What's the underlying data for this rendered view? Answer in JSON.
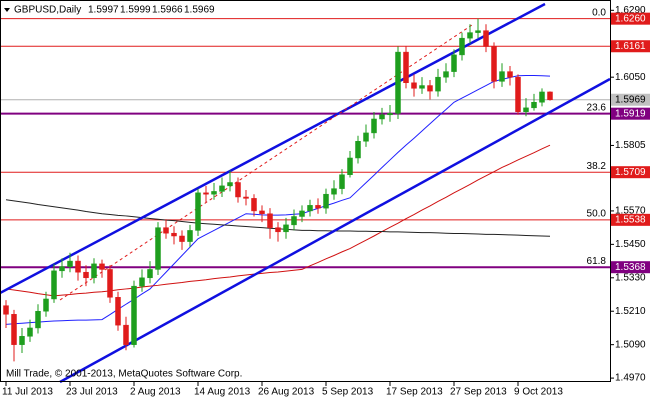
{
  "chart_data": {
    "type": "candlestick",
    "title": "GBPUSD,Daily",
    "footer": "Mill Trade, © 2001-2013, MetaQuotes Software Corp.",
    "categories": [
      "11 Jul 2013",
      null,
      null,
      null,
      null,
      null,
      null,
      null,
      "23 Jul 2013",
      null,
      null,
      null,
      null,
      null,
      null,
      null,
      "2 Aug 2013",
      null,
      null,
      null,
      null,
      null,
      null,
      null,
      "14 Aug 2013",
      null,
      null,
      null,
      null,
      null,
      null,
      null,
      "26 Aug 2013",
      null,
      null,
      null,
      null,
      null,
      null,
      null,
      "5 Sep 2013",
      null,
      null,
      null,
      null,
      null,
      null,
      null,
      "17 Sep 2013",
      null,
      null,
      null,
      null,
      null,
      null,
      null,
      "27 Sep 2013",
      null,
      null,
      null,
      null,
      null,
      null,
      null,
      "9 Oct 2013",
      null,
      null,
      null,
      null
    ],
    "open": [
      1.523,
      1.5199,
      1.509,
      1.512,
      1.515,
      1.521,
      1.5254,
      1.5355,
      1.537,
      1.539,
      1.535,
      1.533,
      1.538,
      1.536,
      1.526,
      1.516,
      1.509,
      1.53,
      1.533,
      1.536,
      1.551,
      1.549,
      1.548,
      1.546,
      1.55,
      1.5635,
      1.563,
      1.564,
      1.566,
      1.5672,
      1.562,
      1.5615,
      1.557,
      1.556,
      1.551,
      1.5495,
      1.552,
      1.555,
      1.557,
      1.559,
      1.558,
      1.563,
      1.565,
      1.57,
      1.576,
      1.582,
      1.585,
      1.59,
      1.5915,
      1.592,
      1.614,
      1.603,
      1.601,
      1.602,
      1.6,
      1.605,
      1.607,
      1.613,
      1.619,
      1.621,
      1.6217,
      1.616,
      1.6035,
      1.607,
      1.605,
      1.5926,
      1.594,
      1.596,
      1.5997
    ],
    "high": [
      1.525,
      1.5215,
      1.515,
      1.518,
      1.5235,
      1.528,
      1.538,
      1.54,
      1.542,
      1.541,
      1.5375,
      1.54,
      1.5395,
      1.5375,
      1.528,
      1.519,
      1.532,
      1.536,
      1.539,
      1.553,
      1.554,
      1.5515,
      1.55,
      1.552,
      1.565,
      1.566,
      1.567,
      1.569,
      1.5715,
      1.569,
      1.5645,
      1.563,
      1.559,
      1.558,
      1.553,
      1.5545,
      1.5575,
      1.559,
      1.561,
      1.5615,
      1.565,
      1.568,
      1.572,
      1.5785,
      1.584,
      1.588,
      1.5925,
      1.594,
      1.595,
      1.616,
      1.616,
      1.606,
      1.605,
      1.604,
      1.608,
      1.61,
      1.615,
      1.621,
      1.624,
      1.626,
      1.624,
      1.6175,
      1.61,
      1.609,
      1.606,
      1.5975,
      1.599,
      1.601,
      1.5999
    ],
    "low": [
      1.515,
      1.503,
      1.506,
      1.51,
      1.513,
      1.519,
      1.524,
      1.533,
      1.535,
      1.532,
      1.53,
      1.531,
      1.533,
      1.524,
      1.514,
      1.507,
      1.508,
      1.528,
      1.531,
      1.534,
      1.547,
      1.545,
      1.543,
      1.544,
      1.548,
      1.56,
      1.561,
      1.562,
      1.564,
      1.56,
      1.559,
      1.555,
      1.553,
      1.547,
      1.546,
      1.547,
      1.55,
      1.553,
      1.555,
      1.556,
      1.556,
      1.561,
      1.563,
      1.569,
      1.574,
      1.58,
      1.583,
      1.588,
      1.589,
      1.59,
      1.601,
      1.598,
      1.599,
      1.597,
      1.598,
      1.603,
      1.605,
      1.611,
      1.617,
      1.619,
      1.614,
      1.601,
      1.6015,
      1.602,
      1.5915,
      1.591,
      1.593,
      1.5945,
      1.5966
    ],
    "close": [
      1.5199,
      1.509,
      1.512,
      1.515,
      1.521,
      1.5254,
      1.5355,
      1.537,
      1.539,
      1.535,
      1.533,
      1.538,
      1.536,
      1.526,
      1.516,
      1.509,
      1.53,
      1.533,
      1.536,
      1.551,
      1.549,
      1.548,
      1.546,
      1.55,
      1.5635,
      1.563,
      1.564,
      1.566,
      1.5672,
      1.562,
      1.5615,
      1.557,
      1.556,
      1.551,
      1.5495,
      1.552,
      1.555,
      1.557,
      1.559,
      1.558,
      1.563,
      1.565,
      1.57,
      1.576,
      1.582,
      1.585,
      1.59,
      1.5915,
      1.592,
      1.614,
      1.603,
      1.601,
      1.602,
      1.6,
      1.605,
      1.607,
      1.613,
      1.619,
      1.621,
      1.6217,
      1.616,
      1.6035,
      1.607,
      1.605,
      1.5926,
      1.594,
      1.596,
      1.5997,
      1.5969
    ],
    "up_color": "#1e9e1e",
    "down_color": "#e01b1b",
    "lines": [
      {
        "color": "#2020ff",
        "values": [
          1.5163,
          1.5165,
          1.5167,
          1.5169,
          1.5171,
          1.5173,
          1.5175,
          1.5176,
          1.5177,
          1.5178,
          1.5178,
          1.5179,
          1.518,
          1.5198,
          1.5217,
          1.5235,
          1.5253,
          1.5272,
          1.529,
          1.532,
          1.535,
          1.538,
          1.541,
          1.544,
          1.547,
          1.5485,
          1.55,
          1.5515,
          1.553,
          1.5545,
          1.556,
          1.5558,
          1.5556,
          1.5555,
          1.5555,
          1.5556,
          1.5558,
          1.556,
          1.557,
          1.5579,
          1.5589,
          1.5598,
          1.5608,
          1.5617,
          1.5644,
          1.5671,
          1.5698,
          1.5726,
          1.5753,
          1.578,
          1.5806,
          1.5831,
          1.5857,
          1.5883,
          1.5909,
          1.5934,
          1.596,
          1.5975,
          1.599,
          1.6005,
          1.602,
          1.6035,
          1.6042,
          1.6049,
          1.6055,
          1.6056,
          1.6056,
          1.6055,
          1.6054
        ]
      },
      {
        "color": "#d01010",
        "values": [
          1.529,
          1.5286,
          1.5282,
          1.5278,
          1.5273,
          1.5269,
          1.5265,
          1.5268,
          1.527,
          1.5273,
          1.5275,
          1.5278,
          1.528,
          1.5283,
          1.5287,
          1.529,
          1.5293,
          1.5297,
          1.53,
          1.5303,
          1.5307,
          1.531,
          1.5313,
          1.5317,
          1.532,
          1.5323,
          1.5327,
          1.533,
          1.5333,
          1.5337,
          1.534,
          1.5343,
          1.5346,
          1.5349,
          1.5351,
          1.5354,
          1.5357,
          1.536,
          1.5373,
          1.5385,
          1.5398,
          1.541,
          1.5423,
          1.5435,
          1.545,
          1.5465,
          1.548,
          1.5496,
          1.5511,
          1.5526,
          1.5542,
          1.5557,
          1.5573,
          1.5588,
          1.5604,
          1.5619,
          1.5635,
          1.565,
          1.5665,
          1.5681,
          1.5696,
          1.5711,
          1.5726,
          1.5739,
          1.5753,
          1.5766,
          1.5779,
          1.5793,
          1.5806
        ]
      },
      {
        "color": "#222222",
        "values": [
          1.561,
          1.5606,
          1.5602,
          1.5598,
          1.5593,
          1.5589,
          1.5585,
          1.5581,
          1.5577,
          1.5573,
          1.5568,
          1.5564,
          1.556,
          1.5557,
          1.5554,
          1.5552,
          1.5549,
          1.5546,
          1.5543,
          1.554,
          1.5537,
          1.5535,
          1.5532,
          1.5529,
          1.5526,
          1.5524,
          1.5522,
          1.552,
          1.5518,
          1.5516,
          1.5514,
          1.5512,
          1.551,
          1.5508,
          1.5506,
          1.5504,
          1.5502,
          1.55,
          1.55,
          1.5499,
          1.5499,
          1.5498,
          1.5498,
          1.5498,
          1.5497,
          1.5497,
          1.5496,
          1.5496,
          1.5495,
          1.5495,
          1.5494,
          1.5493,
          1.5492,
          1.5492,
          1.5491,
          1.549,
          1.5489,
          1.5489,
          1.5488,
          1.5487,
          1.5486,
          1.5486,
          1.5485,
          1.5484,
          1.5483,
          1.5482,
          1.5481,
          1.548,
          1.5479
        ]
      }
    ],
    "levels": [
      {
        "value": 1.626,
        "label": "1.6260",
        "color": "#e01b1b",
        "fib": "0.0"
      },
      {
        "value": 1.6161,
        "label": "1.6161",
        "color": "#e01b1b"
      },
      {
        "value": 1.5919,
        "label": "1.5919",
        "color": "#800080",
        "fib": "23.6"
      },
      {
        "value": 1.5709,
        "label": "1.5709",
        "color": "#e01b1b",
        "fib": "38.2"
      },
      {
        "value": 1.5538,
        "label": "1.5538",
        "color": "#e01b1b",
        "fib": "50.0"
      },
      {
        "value": 1.5368,
        "label": "1.5368",
        "color": "#800080",
        "fib": "61.8"
      }
    ],
    "ylim": [
      1.4956,
      1.6327
    ],
    "yticks": [
      {
        "value": 1.629,
        "label": "1.6290"
      },
      {
        "value": 1.605,
        "label": "1.6050"
      },
      1.5805,
      {
        "value": 1.557,
        "label": "1.5570"
      },
      {
        "value": 1.545,
        "label": "1.5450"
      },
      {
        "value": 1.533,
        "label": "1.5330"
      },
      {
        "value": 1.521,
        "label": "1.5210"
      },
      {
        "value": 1.509,
        "label": "1.5090"
      },
      {
        "value": 1.497,
        "label": "1.4970"
      }
    ]
  }
}
